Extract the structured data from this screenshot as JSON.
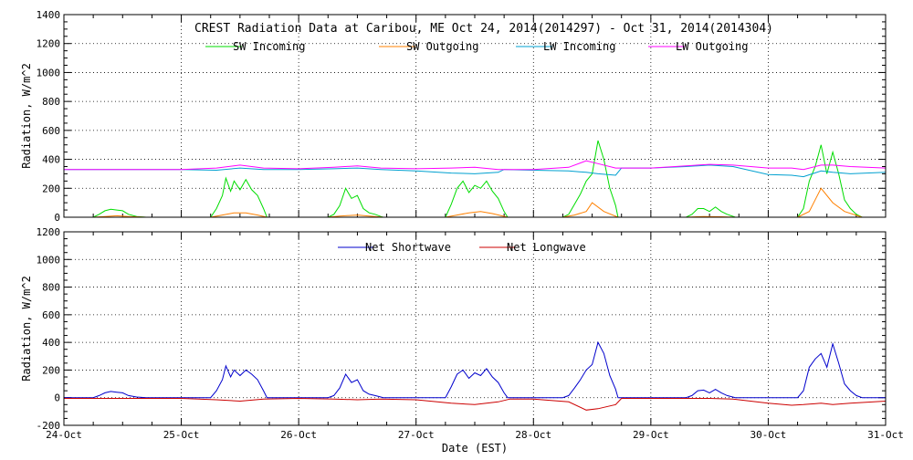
{
  "title": "CREST Radiation Data at Caribou, ME   Oct 24, 2014(2014297) - Oct 31, 2014(2014304)",
  "xlabel": "Date (EST)",
  "x_ticks": [
    "24-Oct",
    "25-Oct",
    "26-Oct",
    "27-Oct",
    "28-Oct",
    "29-Oct",
    "30-Oct",
    "31-Oct"
  ],
  "chart_data": [
    {
      "type": "line",
      "ylabel": "Radiation, W/m^2",
      "ylim": [
        0,
        1400
      ],
      "y_ticks": [
        0,
        200,
        400,
        600,
        800,
        1000,
        1200,
        1400
      ],
      "xlim": [
        0,
        7
      ],
      "grid": true,
      "legend_placement": "top",
      "series": [
        {
          "name": "SW Incoming",
          "color": "#00dd00",
          "x": [
            0,
            0.25,
            0.3,
            0.35,
            0.4,
            0.45,
            0.5,
            0.55,
            0.62,
            0.7,
            1.0,
            1.25,
            1.3,
            1.35,
            1.38,
            1.42,
            1.45,
            1.5,
            1.55,
            1.6,
            1.65,
            1.7,
            1.73,
            2.0,
            2.25,
            2.3,
            2.35,
            2.4,
            2.45,
            2.5,
            2.55,
            2.6,
            2.65,
            2.7,
            2.72,
            3.0,
            3.25,
            3.3,
            3.35,
            3.4,
            3.45,
            3.5,
            3.55,
            3.6,
            3.65,
            3.7,
            3.75,
            3.78,
            4.0,
            4.25,
            4.3,
            4.35,
            4.4,
            4.45,
            4.5,
            4.55,
            4.6,
            4.65,
            4.7,
            4.72,
            5.0,
            5.3,
            5.35,
            5.4,
            5.45,
            5.5,
            5.55,
            5.6,
            5.65,
            5.72,
            6.0,
            6.25,
            6.3,
            6.35,
            6.4,
            6.45,
            6.5,
            6.55,
            6.6,
            6.65,
            6.7,
            6.75,
            6.8,
            7.0
          ],
          "y": [
            0,
            0,
            20,
            45,
            55,
            50,
            45,
            20,
            5,
            0,
            0,
            0,
            60,
            150,
            270,
            180,
            250,
            190,
            260,
            190,
            150,
            60,
            0,
            0,
            0,
            20,
            80,
            200,
            130,
            150,
            60,
            30,
            20,
            5,
            0,
            0,
            0,
            90,
            200,
            250,
            170,
            220,
            200,
            250,
            180,
            130,
            40,
            0,
            0,
            0,
            20,
            90,
            160,
            250,
            300,
            530,
            400,
            200,
            80,
            0,
            0,
            0,
            20,
            60,
            60,
            40,
            70,
            40,
            20,
            0,
            0,
            0,
            60,
            250,
            350,
            500,
            300,
            450,
            300,
            120,
            60,
            20,
            0,
            0
          ]
        },
        {
          "name": "SW Outgoing",
          "color": "#ff8000",
          "x": [
            0,
            0.25,
            0.35,
            0.45,
            0.55,
            0.7,
            1.0,
            1.25,
            1.35,
            1.45,
            1.55,
            1.65,
            1.73,
            2.0,
            2.25,
            2.35,
            2.5,
            2.6,
            2.72,
            3.0,
            3.25,
            3.35,
            3.45,
            3.55,
            3.65,
            3.78,
            4.0,
            4.25,
            4.35,
            4.45,
            4.5,
            4.6,
            4.72,
            5.0,
            5.3,
            5.45,
            5.6,
            5.72,
            6.0,
            6.25,
            6.35,
            6.45,
            6.55,
            6.65,
            6.8,
            7.0
          ],
          "y": [
            0,
            0,
            5,
            10,
            5,
            0,
            0,
            0,
            15,
            30,
            30,
            15,
            0,
            0,
            0,
            8,
            15,
            8,
            0,
            0,
            0,
            15,
            30,
            40,
            25,
            0,
            0,
            0,
            15,
            40,
            100,
            40,
            0,
            0,
            0,
            5,
            3,
            0,
            0,
            0,
            40,
            200,
            100,
            40,
            0,
            0
          ]
        },
        {
          "name": "LW Incoming",
          "color": "#00a0d0",
          "x": [
            0,
            0.5,
            1.0,
            1.3,
            1.5,
            1.7,
            2.0,
            2.3,
            2.5,
            2.7,
            3.0,
            3.3,
            3.5,
            3.7,
            3.75,
            4.0,
            4.3,
            4.45,
            4.55,
            4.7,
            4.75,
            5.0,
            5.3,
            5.5,
            5.7,
            6.0,
            6.2,
            6.3,
            6.45,
            6.55,
            6.7,
            7.0
          ],
          "y": [
            330,
            330,
            330,
            325,
            340,
            330,
            330,
            335,
            340,
            330,
            320,
            305,
            300,
            310,
            330,
            325,
            320,
            310,
            300,
            290,
            340,
            340,
            350,
            360,
            350,
            295,
            290,
            280,
            320,
            310,
            300,
            310
          ]
        },
        {
          "name": "LW Outgoing",
          "color": "#ff00ff",
          "x": [
            0,
            0.5,
            1.0,
            1.3,
            1.5,
            1.7,
            2.0,
            2.3,
            2.5,
            2.7,
            3.0,
            3.3,
            3.5,
            3.7,
            4.0,
            4.3,
            4.45,
            4.55,
            4.7,
            5.0,
            5.3,
            5.5,
            5.7,
            6.0,
            6.2,
            6.3,
            6.45,
            6.55,
            6.7,
            7.0
          ],
          "y": [
            330,
            330,
            330,
            340,
            360,
            340,
            335,
            345,
            355,
            340,
            335,
            340,
            345,
            330,
            330,
            345,
            390,
            370,
            340,
            340,
            355,
            365,
            360,
            340,
            340,
            330,
            360,
            360,
            350,
            340
          ]
        }
      ]
    },
    {
      "type": "line",
      "ylabel": "Radiation, W/m^2",
      "ylim": [
        -200,
        1200
      ],
      "y_ticks": [
        -200,
        0,
        200,
        400,
        600,
        800,
        1000,
        1200
      ],
      "xlim": [
        0,
        7
      ],
      "grid": true,
      "legend_placement": "top",
      "series": [
        {
          "name": "Net Shortwave",
          "color": "#0000cc",
          "x": [
            0,
            0.25,
            0.3,
            0.35,
            0.4,
            0.45,
            0.5,
            0.55,
            0.62,
            0.7,
            1.0,
            1.25,
            1.3,
            1.35,
            1.38,
            1.42,
            1.45,
            1.5,
            1.55,
            1.6,
            1.65,
            1.7,
            1.73,
            2.0,
            2.25,
            2.3,
            2.35,
            2.4,
            2.45,
            2.5,
            2.55,
            2.6,
            2.65,
            2.7,
            2.72,
            3.0,
            3.25,
            3.3,
            3.35,
            3.4,
            3.45,
            3.5,
            3.55,
            3.6,
            3.65,
            3.7,
            3.75,
            3.78,
            4.0,
            4.25,
            4.3,
            4.35,
            4.4,
            4.45,
            4.5,
            4.55,
            4.6,
            4.65,
            4.7,
            4.72,
            5.0,
            5.3,
            5.35,
            5.4,
            5.45,
            5.5,
            5.55,
            5.6,
            5.65,
            5.72,
            6.0,
            6.25,
            6.3,
            6.35,
            6.4,
            6.45,
            6.5,
            6.55,
            6.6,
            6.65,
            6.7,
            6.75,
            6.8,
            7.0
          ],
          "y": [
            0,
            0,
            15,
            35,
            45,
            40,
            35,
            15,
            5,
            0,
            0,
            0,
            50,
            130,
            230,
            150,
            200,
            160,
            200,
            170,
            130,
            50,
            0,
            0,
            0,
            15,
            70,
            170,
            110,
            130,
            50,
            25,
            15,
            5,
            0,
            0,
            0,
            80,
            170,
            200,
            140,
            180,
            160,
            210,
            150,
            110,
            35,
            0,
            0,
            0,
            15,
            70,
            130,
            200,
            240,
            400,
            320,
            160,
            60,
            0,
            0,
            0,
            15,
            50,
            55,
            35,
            60,
            35,
            15,
            0,
            0,
            0,
            50,
            220,
            280,
            320,
            220,
            390,
            250,
            100,
            50,
            15,
            0,
            0
          ]
        },
        {
          "name": "Net Longwave",
          "color": "#cc0000",
          "x": [
            0,
            0.5,
            1.0,
            1.3,
            1.5,
            1.7,
            2.0,
            2.3,
            2.5,
            2.7,
            3.0,
            3.3,
            3.5,
            3.7,
            3.8,
            4.0,
            4.3,
            4.45,
            4.55,
            4.7,
            4.75,
            5.0,
            5.3,
            5.5,
            5.7,
            6.0,
            6.2,
            6.3,
            6.45,
            6.55,
            6.7,
            7.0
          ],
          "y": [
            -5,
            -5,
            -5,
            -15,
            -25,
            -10,
            -5,
            -10,
            -15,
            -10,
            -15,
            -40,
            -50,
            -30,
            -10,
            -10,
            -30,
            -90,
            -80,
            -50,
            -5,
            -5,
            -5,
            -5,
            -10,
            -40,
            -55,
            -50,
            -40,
            -50,
            -40,
            -25
          ]
        }
      ]
    }
  ]
}
